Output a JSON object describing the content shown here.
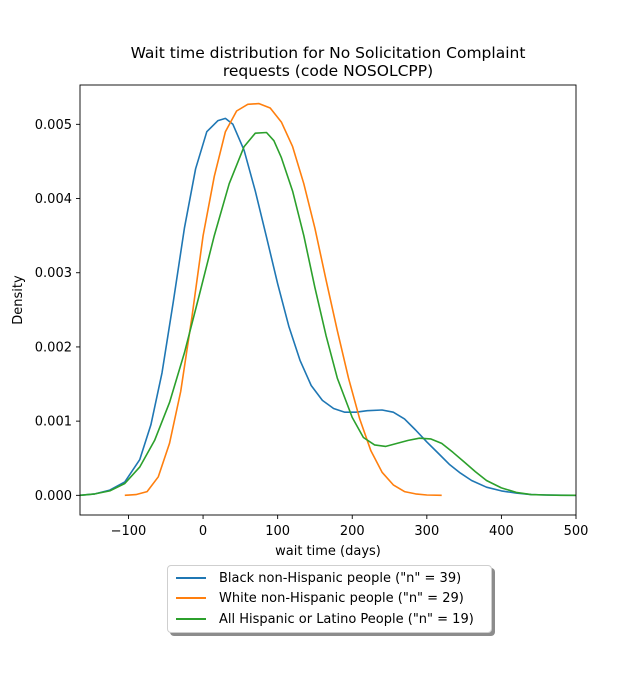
{
  "chart_data": {
    "type": "line",
    "title": "Wait time distribution  for No Solicitation Complaint\nrequests (code NOSOLCPP)",
    "xlabel": "wait time (days)",
    "ylabel": "Density",
    "xlim": [
      -165,
      500
    ],
    "ylim": [
      -0.000265,
      0.00553
    ],
    "xticks": [
      -100,
      0,
      100,
      200,
      300,
      400,
      500
    ],
    "xtick_labels": [
      "−100",
      "0",
      "100",
      "200",
      "300",
      "400",
      "500"
    ],
    "yticks": [
      0,
      0.001,
      0.002,
      0.003,
      0.004,
      0.005
    ],
    "ytick_labels": [
      "0.000",
      "0.001",
      "0.002",
      "0.003",
      "0.004",
      "0.005"
    ],
    "grid": false,
    "legend_position": "below",
    "series": [
      {
        "name": "Black non-Hispanic people (\"n\" = 39)",
        "color": "#1f77b4",
        "x": [
          -165,
          -145,
          -125,
          -105,
          -85,
          -70,
          -55,
          -40,
          -25,
          -10,
          5,
          20,
          30,
          40,
          55,
          70,
          85,
          100,
          115,
          130,
          145,
          160,
          175,
          190,
          205,
          220,
          240,
          255,
          270,
          285,
          300,
          315,
          330,
          345,
          360,
          380,
          400,
          420,
          440,
          460,
          480,
          500
        ],
        "y": [
          0.0,
          2e-05,
          7e-05,
          0.00018,
          0.00048,
          0.00095,
          0.00165,
          0.0026,
          0.0036,
          0.0044,
          0.0049,
          0.00505,
          0.00508,
          0.005,
          0.00465,
          0.0041,
          0.00348,
          0.00285,
          0.00228,
          0.00182,
          0.00148,
          0.00128,
          0.00117,
          0.00112,
          0.00112,
          0.00114,
          0.00115,
          0.00112,
          0.00103,
          0.00088,
          0.00072,
          0.00057,
          0.00042,
          0.0003,
          0.0002,
          0.00011,
          6e-05,
          3e-05,
          1e-05,
          5e-06,
          2e-06,
          0.0
        ]
      },
      {
        "name": "White non-Hispanic people (\"n\" = 29)",
        "color": "#ff7f0e",
        "x": [
          -105,
          -90,
          -75,
          -60,
          -45,
          -30,
          -15,
          0,
          15,
          30,
          45,
          60,
          75,
          90,
          105,
          120,
          135,
          150,
          165,
          180,
          195,
          210,
          225,
          240,
          255,
          270,
          285,
          300,
          320
        ],
        "y": [
          0.0,
          1e-05,
          5e-05,
          0.00025,
          0.0007,
          0.0014,
          0.0024,
          0.0035,
          0.0043,
          0.0049,
          0.00518,
          0.00527,
          0.00528,
          0.00522,
          0.00503,
          0.0047,
          0.0042,
          0.0036,
          0.0029,
          0.00222,
          0.00158,
          0.00103,
          0.0006,
          0.00031,
          0.00014,
          5e-05,
          2e-05,
          5e-06,
          0.0
        ]
      },
      {
        "name": "All Hispanic or Latino People (\"n\" = 19)",
        "color": "#2ca02c",
        "x": [
          -165,
          -145,
          -125,
          -105,
          -85,
          -65,
          -45,
          -25,
          -5,
          15,
          35,
          55,
          70,
          85,
          95,
          105,
          120,
          135,
          150,
          165,
          180,
          200,
          215,
          230,
          245,
          260,
          275,
          290,
          305,
          320,
          335,
          350,
          365,
          380,
          400,
          420,
          440,
          460,
          480,
          500
        ],
        "y": [
          0.0,
          2e-05,
          6e-05,
          0.00016,
          0.00038,
          0.00074,
          0.00125,
          0.00192,
          0.0027,
          0.0035,
          0.0042,
          0.0047,
          0.00488,
          0.00489,
          0.00478,
          0.00455,
          0.0041,
          0.0035,
          0.0028,
          0.00215,
          0.00158,
          0.00105,
          0.00078,
          0.00068,
          0.00066,
          0.0007,
          0.00074,
          0.00077,
          0.00076,
          0.0007,
          0.00058,
          0.00045,
          0.00032,
          0.0002,
          0.0001,
          4e-05,
          1e-05,
          4e-06,
          1e-06,
          0.0
        ]
      }
    ]
  }
}
